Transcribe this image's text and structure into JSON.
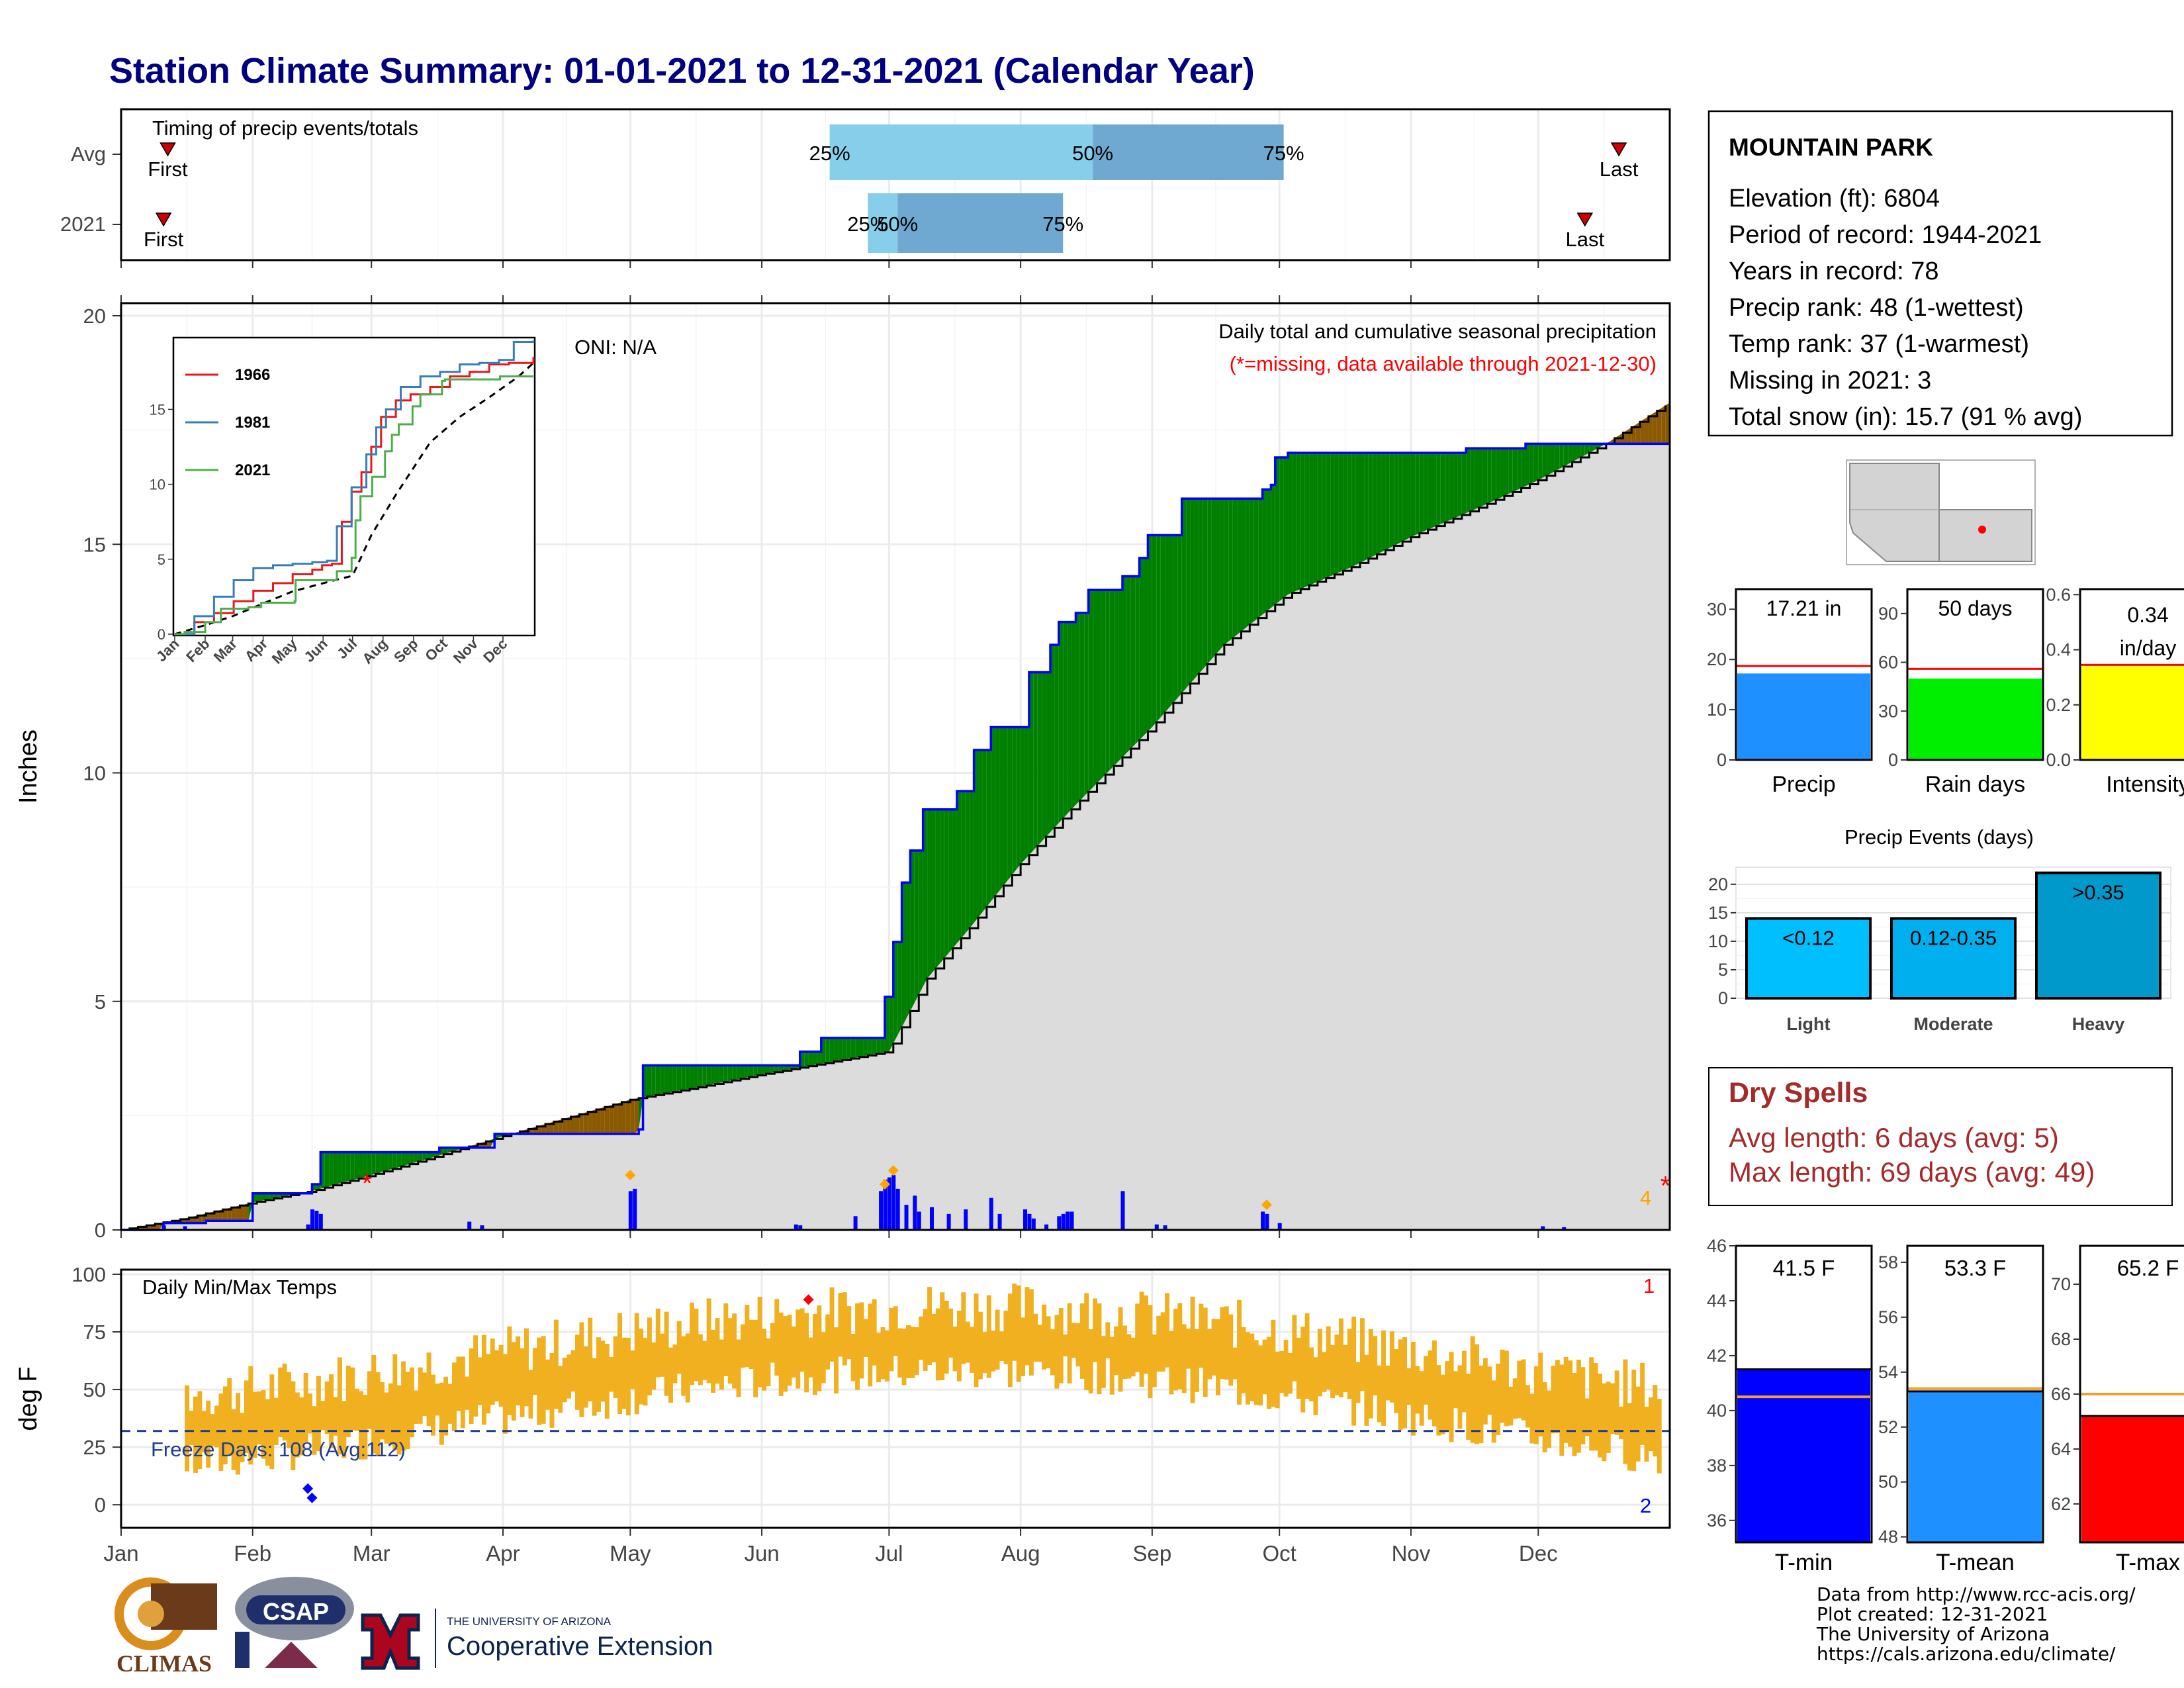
{
  "title": "Station Climate Summary: 01-01-2021 to 12-31-2021 (Calendar Year)",
  "months": [
    "Jan",
    "Feb",
    "Mar",
    "Apr",
    "May",
    "Jun",
    "Jul",
    "Aug",
    "Sep",
    "Oct",
    "Nov",
    "Dec"
  ],
  "timing": {
    "label": "Timing of precip events/totals",
    "rows": [
      "Avg",
      "2021"
    ],
    "first_label": "First",
    "last_label": "Last",
    "q25": "25%",
    "q50": "50%",
    "q75": "75%",
    "avg_doy": {
      "first": 11,
      "q25": 167,
      "q50": 229,
      "q75": 274,
      "last": 353
    },
    "y2021_doy": {
      "first": 10,
      "q25": 176,
      "q50": 183,
      "q75": 222,
      "last": 345
    }
  },
  "precip": {
    "ylabel": "Inches",
    "legend_title": "Daily total and cumulative seasonal precipitation",
    "missing_note": "(*=missing, data available through 2021-12-30)",
    "oni": "ONI: N/A",
    "yticks": [
      "0",
      "5",
      "10",
      "15",
      "20"
    ],
    "ylim": [
      0,
      20
    ],
    "missing_count_label": "4",
    "cum_avg": [
      [
        0,
        0
      ],
      [
        15,
        0.25
      ],
      [
        31,
        0.6
      ],
      [
        45,
        0.85
      ],
      [
        59,
        1.2
      ],
      [
        74,
        1.6
      ],
      [
        90,
        2.05
      ],
      [
        105,
        2.45
      ],
      [
        120,
        2.85
      ],
      [
        135,
        3.1
      ],
      [
        151,
        3.4
      ],
      [
        166,
        3.65
      ],
      [
        181,
        3.9
      ],
      [
        190,
        5.5
      ],
      [
        200,
        6.6
      ],
      [
        212,
        8.0
      ],
      [
        225,
        9.3
      ],
      [
        243,
        11.0
      ],
      [
        260,
        12.8
      ],
      [
        275,
        13.9
      ],
      [
        290,
        14.5
      ],
      [
        305,
        15.2
      ],
      [
        320,
        15.8
      ],
      [
        334,
        16.4
      ],
      [
        350,
        17.2
      ],
      [
        365,
        18.1
      ]
    ],
    "cum_2021": [
      [
        0,
        0
      ],
      [
        10,
        0.15
      ],
      [
        20,
        0.2
      ],
      [
        31,
        0.8
      ],
      [
        45,
        1.0
      ],
      [
        47,
        1.7
      ],
      [
        75,
        1.8
      ],
      [
        88,
        2.1
      ],
      [
        122,
        2.2
      ],
      [
        123,
        3.6
      ],
      [
        160,
        3.9
      ],
      [
        165,
        4.2
      ],
      [
        179,
        4.2
      ],
      [
        180,
        5.1
      ],
      [
        182,
        6.3
      ],
      [
        184,
        7.6
      ],
      [
        186,
        8.3
      ],
      [
        189,
        9.2
      ],
      [
        197,
        9.6
      ],
      [
        201,
        10.5
      ],
      [
        205,
        11.0
      ],
      [
        214,
        12.2
      ],
      [
        219,
        12.8
      ],
      [
        221,
        13.3
      ],
      [
        225,
        13.5
      ],
      [
        228,
        14.0
      ],
      [
        236,
        14.3
      ],
      [
        240,
        14.7
      ],
      [
        242,
        15.2
      ],
      [
        250,
        16.0
      ],
      [
        269,
        16.2
      ],
      [
        271,
        16.3
      ],
      [
        272,
        16.9
      ],
      [
        275,
        17.0
      ],
      [
        317,
        17.1
      ],
      [
        331,
        17.2
      ],
      [
        365,
        17.2
      ]
    ],
    "daily": [
      [
        10,
        0.1
      ],
      [
        15,
        0.08
      ],
      [
        44,
        0.12
      ],
      [
        45,
        0.45
      ],
      [
        46,
        0.42
      ],
      [
        47,
        0.35
      ],
      [
        82,
        0.18
      ],
      [
        85,
        0.1
      ],
      [
        120,
        0.85
      ],
      [
        121,
        0.9
      ],
      [
        159,
        0.12
      ],
      [
        160,
        0.1
      ],
      [
        173,
        0.3
      ],
      [
        179,
        0.85
      ],
      [
        180,
        1.1
      ],
      [
        181,
        1.15
      ],
      [
        182,
        1.2
      ],
      [
        183,
        0.9
      ],
      [
        185,
        0.55
      ],
      [
        187,
        0.75
      ],
      [
        188,
        0.4
      ],
      [
        191,
        0.5
      ],
      [
        195,
        0.35
      ],
      [
        199,
        0.45
      ],
      [
        205,
        0.7
      ],
      [
        207,
        0.35
      ],
      [
        213,
        0.45
      ],
      [
        214,
        0.35
      ],
      [
        215,
        0.25
      ],
      [
        218,
        0.12
      ],
      [
        221,
        0.3
      ],
      [
        222,
        0.35
      ],
      [
        223,
        0.4
      ],
      [
        224,
        0.4
      ],
      [
        236,
        0.85
      ],
      [
        244,
        0.12
      ],
      [
        246,
        0.1
      ],
      [
        269,
        0.4
      ],
      [
        270,
        0.35
      ],
      [
        273,
        0.15
      ],
      [
        335,
        0.08
      ],
      [
        340,
        0.06
      ]
    ],
    "markers_daily_orange": [
      [
        120,
        1.2
      ],
      [
        180,
        1.0
      ],
      [
        182,
        1.3
      ],
      [
        270,
        0.55
      ]
    ],
    "missing_markers": [
      [
        58,
        1.0
      ],
      [
        364,
        0.95
      ]
    ]
  },
  "inset": {
    "series": [
      {
        "name": "1966",
        "color": "#e41a1c",
        "points": [
          [
            0,
            0
          ],
          [
            20,
            0.8
          ],
          [
            40,
            1.4
          ],
          [
            60,
            2.2
          ],
          [
            80,
            2.9
          ],
          [
            100,
            3.4
          ],
          [
            120,
            4.0
          ],
          [
            140,
            4.3
          ],
          [
            150,
            4.6
          ],
          [
            160,
            4.7
          ],
          [
            170,
            7.5
          ],
          [
            180,
            9.5
          ],
          [
            190,
            10.8
          ],
          [
            200,
            12.5
          ],
          [
            210,
            14.5
          ],
          [
            225,
            15.6
          ],
          [
            240,
            16.0
          ],
          [
            260,
            16.5
          ],
          [
            280,
            17.2
          ],
          [
            300,
            17.5
          ],
          [
            320,
            18.0
          ],
          [
            340,
            18.1
          ],
          [
            365,
            18.5
          ]
        ]
      },
      {
        "name": "1981",
        "color": "#377eb8",
        "points": [
          [
            0,
            0
          ],
          [
            20,
            1.2
          ],
          [
            40,
            2.5
          ],
          [
            60,
            3.6
          ],
          [
            80,
            4.4
          ],
          [
            100,
            4.6
          ],
          [
            120,
            4.7
          ],
          [
            140,
            4.8
          ],
          [
            155,
            4.9
          ],
          [
            165,
            7.2
          ],
          [
            180,
            9.8
          ],
          [
            195,
            12.0
          ],
          [
            205,
            13.8
          ],
          [
            215,
            15.0
          ],
          [
            230,
            16.5
          ],
          [
            250,
            17.2
          ],
          [
            270,
            17.5
          ],
          [
            290,
            18.0
          ],
          [
            310,
            18.1
          ],
          [
            330,
            18.3
          ],
          [
            345,
            19.5
          ],
          [
            365,
            19.6
          ]
        ]
      },
      {
        "name": "2021",
        "color": "#4daf4a",
        "points": [
          [
            0,
            0
          ],
          [
            10,
            0.15
          ],
          [
            31,
            0.8
          ],
          [
            47,
            1.7
          ],
          [
            75,
            1.8
          ],
          [
            88,
            2.1
          ],
          [
            122,
            2.2
          ],
          [
            123,
            3.6
          ],
          [
            165,
            4.2
          ],
          [
            180,
            5.1
          ],
          [
            184,
            7.6
          ],
          [
            189,
            9.2
          ],
          [
            201,
            10.5
          ],
          [
            214,
            12.2
          ],
          [
            221,
            13.3
          ],
          [
            228,
            14.0
          ],
          [
            242,
            15.2
          ],
          [
            250,
            16.0
          ],
          [
            272,
            16.9
          ],
          [
            275,
            17.0
          ],
          [
            331,
            17.2
          ],
          [
            365,
            17.2
          ]
        ]
      }
    ],
    "avg_points": [
      [
        0,
        0
      ],
      [
        31,
        0.6
      ],
      [
        59,
        1.2
      ],
      [
        90,
        2.05
      ],
      [
        120,
        2.85
      ],
      [
        151,
        3.4
      ],
      [
        181,
        3.9
      ],
      [
        200,
        6.6
      ],
      [
        225,
        9.3
      ],
      [
        260,
        12.8
      ],
      [
        290,
        14.5
      ],
      [
        320,
        15.8
      ],
      [
        350,
        17.2
      ],
      [
        365,
        18.1
      ]
    ],
    "yticks": [
      "0",
      "5",
      "10",
      "15"
    ],
    "ylim": [
      0,
      19.7
    ]
  },
  "temps": {
    "ylabel": "deg F",
    "label": "Daily Min/Max Temps",
    "freeze": "Freeze Days: 108 (Avg:112)",
    "yticks": [
      "0",
      "25",
      "50",
      "75",
      "100"
    ],
    "ylim": [
      -10,
      102
    ],
    "count_top": "1",
    "count_bottom": "2",
    "freeze_line": 32,
    "max_markers": [
      [
        162,
        89
      ]
    ],
    "min_markers": [
      [
        44,
        7
      ],
      [
        45,
        3
      ]
    ]
  },
  "station": {
    "name": "MOUNTAIN PARK",
    "lines": [
      "Elevation (ft): 6804",
      "Period of record: 1944-2021",
      "Years in record: 78",
      "Precip rank: 48 (1-wettest)",
      "Temp rank: 37 (1-warmest)",
      "Missing in 2021: 3",
      "Total snow (in): 15.7 (91 % avg)"
    ]
  },
  "summary_bars": [
    {
      "label": "Precip",
      "value_text": "17.21 in",
      "value": 17.21,
      "avg": 18.7,
      "ylim": [
        0,
        34
      ],
      "ticks": [
        "0",
        "10",
        "20",
        "30"
      ],
      "color": "#1e90ff"
    },
    {
      "label": "Rain days",
      "value_text": "50 days",
      "value": 50,
      "avg": 56,
      "ylim": [
        0,
        105
      ],
      "ticks": [
        "0",
        "30",
        "60",
        "90"
      ],
      "color": "#00ee00"
    },
    {
      "label": "Intensity",
      "value_text": "0.34",
      "value_text2": "in/day",
      "value": 0.34,
      "avg": 0.345,
      "ylim": [
        0,
        0.62
      ],
      "ticks": [
        "0.0",
        "0.2",
        "0.4",
        "0.6"
      ],
      "color": "#ffff00"
    }
  ],
  "events": {
    "title": "Precip Events (days)",
    "yticks": [
      "0",
      "5",
      "10",
      "15",
      "20"
    ],
    "ylim": [
      0,
      23
    ],
    "bars": [
      {
        "category": "Light",
        "label": "<0.12",
        "value": 14,
        "color": "#00bfff"
      },
      {
        "category": "Moderate",
        "label": "0.12-0.35",
        "value": 14,
        "color": "#00b0ee"
      },
      {
        "category": "Heavy",
        "label": ">0.35",
        "value": 22,
        "color": "#0099cc"
      }
    ]
  },
  "dry_spells": {
    "title": "Dry Spells",
    "avg_length": "Avg length: 6 days (avg: 5)",
    "max_length": "Max length: 69 days (avg: 49)"
  },
  "temp_bars": [
    {
      "label": "T-min",
      "value_text": "41.5 F",
      "value": 41.5,
      "avg": 40.5,
      "ylim": [
        35.2,
        46
      ],
      "ticks": [
        "36",
        "38",
        "40",
        "42",
        "44",
        "46"
      ],
      "color": "#0000ff"
    },
    {
      "label": "T-mean",
      "value_text": "53.3 F",
      "value": 53.3,
      "avg": 53.4,
      "ylim": [
        47.8,
        58.6
      ],
      "ticks": [
        "48",
        "50",
        "52",
        "54",
        "56",
        "58"
      ],
      "color": "#1e90ff"
    },
    {
      "label": "T-max",
      "value_text": "65.2 F",
      "value": 65.2,
      "avg": 66.0,
      "ylim": [
        60.6,
        71.4
      ],
      "ticks": [
        "62",
        "64",
        "66",
        "68",
        "70"
      ],
      "color": "#ff0000"
    }
  ],
  "credits": [
    "Data from http://www.rcc-acis.org/",
    "Plot created: 12-31-2021",
    "The University of Arizona",
    "https://cals.arizona.edu/climate/"
  ],
  "logos": {
    "climas": "CLIMAS",
    "csap": "CSAP",
    "ua_small": "THE UNIVERSITY OF ARIZONA",
    "ua_big": "Cooperative Extension"
  }
}
